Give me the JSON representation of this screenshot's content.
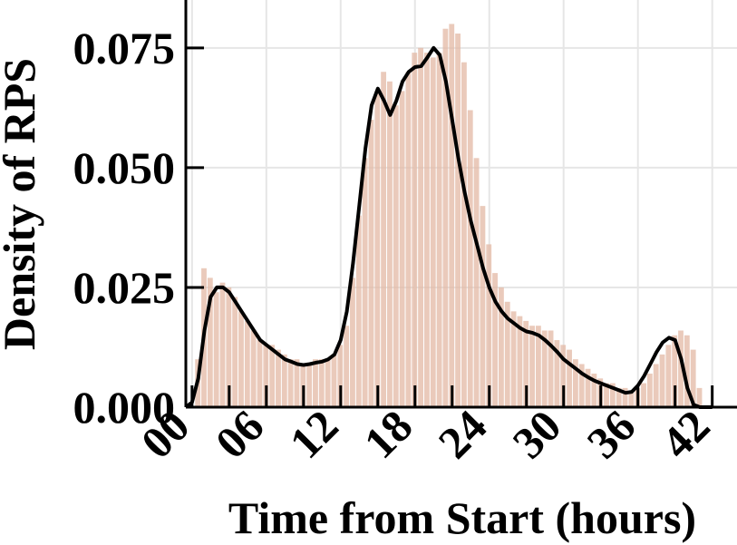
{
  "chart_data": {
    "type": "area",
    "title": "",
    "xlabel": "Time from Start (hours)",
    "ylabel": "Density of RPS",
    "xlim": [
      -0.5,
      44
    ],
    "ylim": [
      0,
      0.085
    ],
    "grid": true,
    "x_ticks": [
      0,
      6,
      12,
      18,
      24,
      30,
      36,
      42
    ],
    "x_tick_labels": [
      "00",
      "06",
      "12",
      "18",
      "24",
      "30",
      "36",
      "42"
    ],
    "y_ticks": [
      0,
      0.025,
      0.05,
      0.075
    ],
    "y_tick_labels": [
      "0.000",
      "0.025",
      "0.050",
      "0.075"
    ],
    "colors": {
      "hist": "#e3b8a4",
      "kde": "#000000",
      "grid": "#e6e6e6"
    },
    "histogram": {
      "name": "",
      "x": [
        0.5,
        1.0,
        1.5,
        2.0,
        2.5,
        3.0,
        3.5,
        4.0,
        4.5,
        5.0,
        5.5,
        6.0,
        6.5,
        7.0,
        7.5,
        8.0,
        8.5,
        9.0,
        9.5,
        10.0,
        10.5,
        11.0,
        11.5,
        12.0,
        12.5,
        13.0,
        13.5,
        14.0,
        14.5,
        15.0,
        15.5,
        16.0,
        16.5,
        17.0,
        17.5,
        18.0,
        18.5,
        19.0,
        19.5,
        20.0,
        20.5,
        21.0,
        21.5,
        22.0,
        22.5,
        23.0,
        23.5,
        24.0,
        24.5,
        25.0,
        25.5,
        26.0,
        26.5,
        27.0,
        27.5,
        28.0,
        28.5,
        29.0,
        29.5,
        30.0,
        30.5,
        31.0,
        31.5,
        32.0,
        32.5,
        33.0,
        33.5,
        34.0,
        34.5,
        35.0,
        35.5,
        36.0,
        36.5,
        37.0,
        37.5,
        38.0,
        38.5,
        39.0,
        39.5,
        40.0,
        40.5,
        41.0
      ],
      "values": [
        0.01,
        0.029,
        0.027,
        0.024,
        0.026,
        0.025,
        0.023,
        0.02,
        0.018,
        0.016,
        0.014,
        0.013,
        0.013,
        0.012,
        0.011,
        0.01,
        0.01,
        0.009,
        0.009,
        0.01,
        0.01,
        0.01,
        0.011,
        0.013,
        0.017,
        0.027,
        0.04,
        0.052,
        0.06,
        0.066,
        0.07,
        0.068,
        0.063,
        0.066,
        0.07,
        0.074,
        0.075,
        0.074,
        0.073,
        0.074,
        0.079,
        0.08,
        0.078,
        0.072,
        0.062,
        0.052,
        0.042,
        0.034,
        0.028,
        0.025,
        0.022,
        0.02,
        0.019,
        0.018,
        0.017,
        0.017,
        0.016,
        0.016,
        0.014,
        0.013,
        0.012,
        0.01,
        0.009,
        0.008,
        0.007,
        0.006,
        0.005,
        0.005,
        0.004,
        0.004,
        0.003,
        0.004,
        0.005,
        0.007,
        0.009,
        0.011,
        0.013,
        0.015,
        0.016,
        0.015,
        0.012,
        0.004
      ]
    },
    "kde": {
      "name": "",
      "x": [
        -0.5,
        0.0,
        0.5,
        1.0,
        1.5,
        2.0,
        2.5,
        3.0,
        3.5,
        4.0,
        4.5,
        5.0,
        5.5,
        6.0,
        6.5,
        7.0,
        7.5,
        8.0,
        8.5,
        9.0,
        9.5,
        10.0,
        10.5,
        11.0,
        11.5,
        12.0,
        12.5,
        13.0,
        13.5,
        14.0,
        14.5,
        15.0,
        15.5,
        16.0,
        16.5,
        17.0,
        17.5,
        18.0,
        18.5,
        19.0,
        19.5,
        20.0,
        20.5,
        21.0,
        21.5,
        22.0,
        22.5,
        23.0,
        23.5,
        24.0,
        24.5,
        25.0,
        25.5,
        26.0,
        26.5,
        27.0,
        27.5,
        28.0,
        28.5,
        29.0,
        29.5,
        30.0,
        30.5,
        31.0,
        31.5,
        32.0,
        32.5,
        33.0,
        33.5,
        34.0,
        34.5,
        35.0,
        35.5,
        36.0,
        36.5,
        37.0,
        37.5,
        38.0,
        38.5,
        39.0,
        39.5,
        40.0,
        40.5,
        41.0,
        41.5,
        42.0
      ],
      "values": [
        0.0,
        0.001,
        0.006,
        0.016,
        0.023,
        0.025,
        0.025,
        0.024,
        0.022,
        0.02,
        0.018,
        0.016,
        0.014,
        0.013,
        0.012,
        0.011,
        0.01,
        0.0095,
        0.009,
        0.0088,
        0.009,
        0.0093,
        0.0095,
        0.01,
        0.011,
        0.014,
        0.02,
        0.03,
        0.042,
        0.054,
        0.063,
        0.0665,
        0.064,
        0.061,
        0.064,
        0.068,
        0.07,
        0.071,
        0.0712,
        0.073,
        0.075,
        0.0735,
        0.068,
        0.06,
        0.052,
        0.045,
        0.039,
        0.034,
        0.029,
        0.025,
        0.022,
        0.02,
        0.0185,
        0.0175,
        0.0165,
        0.0158,
        0.0155,
        0.015,
        0.014,
        0.0128,
        0.0115,
        0.01,
        0.009,
        0.008,
        0.007,
        0.0062,
        0.0055,
        0.005,
        0.0045,
        0.004,
        0.0035,
        0.003,
        0.0032,
        0.0045,
        0.0065,
        0.009,
        0.0115,
        0.0135,
        0.0145,
        0.014,
        0.01,
        0.004,
        0.0005,
        0.0,
        0.0,
        0.0
      ]
    }
  }
}
